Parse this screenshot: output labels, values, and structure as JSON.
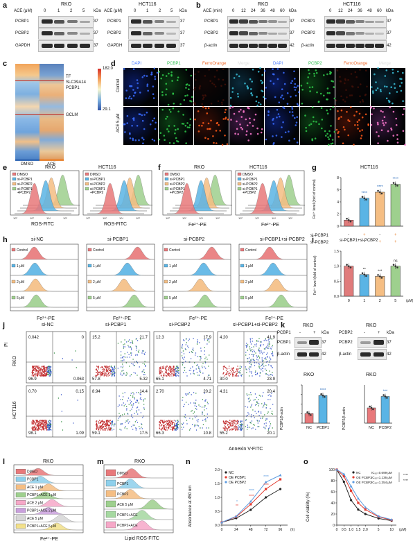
{
  "panels": {
    "a": "a",
    "b": "b",
    "c": "c",
    "d": "d",
    "e": "e",
    "f": "f",
    "g": "g",
    "h": "h",
    "i": "i",
    "j": "j",
    "k": "k",
    "l": "l",
    "m": "m",
    "n": "n",
    "o": "o"
  },
  "a": {
    "left": {
      "cell": "RKO",
      "ace_label": "ACE (μM)",
      "doses": [
        "0",
        "1",
        "2",
        "5"
      ],
      "kda": "kDa",
      "rows": [
        "PCBP1",
        "PCBP2",
        "GAPDH"
      ],
      "mw": [
        "37",
        "37",
        "37"
      ]
    },
    "right": {
      "cell": "HCT116",
      "ace_label": "ACE (μM)",
      "doses": [
        "0",
        "1",
        "2",
        "5"
      ],
      "kda": "kDa",
      "rows": [
        "PCBP1",
        "PCBP2",
        "GAPDH"
      ],
      "mw": [
        "37",
        "37",
        "37"
      ]
    }
  },
  "b": {
    "left": {
      "cell": "RKO",
      "ace_label": "ACE (min)",
      "times": [
        "0",
        "12",
        "24",
        "36",
        "48",
        "60"
      ],
      "kda": "kDa",
      "rows": [
        "PCBP1",
        "PCBP2",
        "β-actin"
      ],
      "mw": [
        "37",
        "37",
        "42"
      ]
    },
    "right": {
      "cell": "HCT116",
      "times": [
        "0",
        "12",
        "24",
        "36",
        "48",
        "60"
      ],
      "kda": "kDa",
      "rows": [
        "PCBP1",
        "PCBP2",
        "β-actin"
      ],
      "mw": [
        "37",
        "37",
        "42"
      ]
    }
  },
  "c": {
    "max": "182.0",
    "min": "29.1",
    "genes": [
      "TF",
      "SLC39A14",
      "PCBP1",
      "GCLM"
    ],
    "groups": [
      "DMSO",
      "ACE"
    ]
  },
  "d": {
    "headers": [
      "DAPI",
      "PCBP1",
      "FerroOrange",
      "Merge",
      "DAPI",
      "PCBP2",
      "FerroOrange",
      "Merge"
    ],
    "rows": [
      "Control",
      "ACE 5 μM"
    ],
    "scale": "200 μm"
  },
  "e": {
    "xlabel": "ROS-FITC",
    "left": {
      "cell": "RKO",
      "legend": [
        "DMSO",
        "si-PCBP1",
        "si-PCBP2",
        "si-PCBP1\n+PCBP2"
      ]
    },
    "right": {
      "cell": "HCT116",
      "legend": [
        "DMSO",
        "si-PCBP1",
        "si-PCBP2",
        "si-PCBP1\n+PCBP2"
      ]
    }
  },
  "f": {
    "xlabel": "Fe²⁺-PE",
    "left": {
      "cell": "RKO",
      "legend": [
        "DMSO",
        "si-PCBP1",
        "si-PCBP2",
        "si-PCBP1\n+PCBP2"
      ]
    },
    "right": {
      "cell": "HCT116",
      "legend": [
        "DMSO",
        "si-PCBP1",
        "si-PCBP2",
        "si-PCBP1\n+PCBP2"
      ]
    }
  },
  "g": {
    "title": "HCT116",
    "ylabel": "Fe²⁺ level (fold of control)",
    "yticks": [
      "0",
      "2",
      "4",
      "6",
      "8"
    ],
    "sig": [
      "****",
      "****",
      "****"
    ],
    "rows": [
      {
        "label": "si-PCBP1",
        "marks": [
          "-",
          "+",
          "-",
          "+"
        ]
      },
      {
        "label": "si-PCBP2",
        "marks": [
          "-",
          "-",
          "+",
          "+"
        ]
      }
    ]
  },
  "h": {
    "xlabel": "Fe²⁺-PE",
    "titles": [
      "si-NC",
      "si-PCBP1",
      "si-PCBP2",
      "si-PCBP1+si-PCBP2"
    ],
    "legend": [
      "Control",
      "1 μM",
      "2 μM",
      "5 μM"
    ]
  },
  "i": {
    "title": "si-PCBP1+si-PCBP2",
    "ylabel": "Fe²⁺ level (fold of control)",
    "yticks": [
      "0.0",
      "0.5",
      "1.0",
      "1.5"
    ],
    "xticks": [
      "0",
      "1",
      "2",
      "5"
    ],
    "xunit": "(μM)",
    "sig": [
      "**",
      "***",
      "ns"
    ]
  },
  "j": {
    "titles": [
      "si-NC",
      "si-PCBP1",
      "si-PCBP2",
      "si-PCBP1+si-PCBP2"
    ],
    "rows": [
      "RKO",
      "HCT116"
    ],
    "ylabel": "PI",
    "xlabel": "Annexin V-FITC",
    "quads": [
      [
        "0.042",
        "0",
        "96.9",
        "0.063"
      ],
      [
        "15.2",
        "21.7",
        "57.8",
        "5.32"
      ],
      [
        "12.3",
        "17.9",
        "65.1",
        "4.71"
      ],
      [
        "4.20",
        "41.9",
        "30.0",
        "23.9"
      ],
      [
        "0.70",
        "0.15",
        "98.1",
        "1.09"
      ],
      [
        "8.94",
        "14.4",
        "59.1",
        "17.5"
      ],
      [
        "2.70",
        "20.2",
        "66.3",
        "10.8"
      ],
      [
        "4.31",
        "20.4",
        "55.2",
        "20.1"
      ]
    ]
  },
  "k": {
    "left": {
      "cell": "RKO",
      "col": "PCBP1",
      "marks": [
        "-",
        "+"
      ],
      "kda": "kDa",
      "rows": [
        "PCBP1",
        "β-actin"
      ],
      "mw": [
        "37",
        "42"
      ],
      "ylabel": "PCBP1/β-actin",
      "xticks": [
        "NC",
        "PCBP1"
      ],
      "sig": "****"
    },
    "right": {
      "cell": "RKO",
      "col": "PCBP2",
      "marks": [
        "-",
        "+"
      ],
      "kda": "kDa",
      "rows": [
        "PCBP2",
        "β-actin"
      ],
      "mw": [
        "37",
        "42"
      ],
      "ylabel": "PCBP2/β-actin",
      "xticks": [
        "NC",
        "PCBP2"
      ],
      "sig": "***"
    }
  },
  "l": {
    "cell": "RKO",
    "xlabel": "Fe²⁺-PE",
    "legend": [
      "DMSO",
      "PCBP1",
      "ACE 1 μM",
      "PCBP1+ACE 1 μM",
      "ACE 2 μM",
      "PCBP1+ACE 2 μM",
      "ACE 5 μM",
      "PCBP1+ACE 5 μM"
    ]
  },
  "m": {
    "cell": "RKO",
    "xlabel": "Lipid ROS-FITC",
    "legend": [
      "DMSO",
      "PCBP1",
      "PCBP2",
      "ACE 5 μM",
      "PCBP1+ACE",
      "PCBP2+ACE"
    ]
  },
  "n": {
    "ylabel": "Absorbance at 450 nm",
    "xunit": "(h)",
    "xticks": [
      "0",
      "24",
      "48",
      "72",
      "96"
    ],
    "yticks": [
      "0.0",
      "0.5",
      "1.0",
      "1.5",
      "2.0"
    ],
    "legend": [
      "NC",
      "OE PCBP1",
      "OE PCBP2"
    ],
    "sig": [
      "*",
      "**",
      "****",
      "****",
      "****",
      "****"
    ]
  },
  "o": {
    "ylabel": "Cell viability (%)",
    "xunit": "(μM)",
    "xticks": [
      "0",
      "0.5",
      "1.0",
      "1.5",
      "2.0",
      "5",
      "10"
    ],
    "yticks": [
      "0",
      "20",
      "40",
      "60",
      "80",
      "100"
    ],
    "legend": [
      "NC",
      "OE PCBP1",
      "OE PCBP2"
    ],
    "ic50": [
      "IC₅₀=0.699 μM",
      "IC₅₀=1.136 μM",
      "IC₅₀=1.354 μM"
    ],
    "sig": [
      "****",
      "****"
    ]
  },
  "chart_data": [
    {
      "type": "bar",
      "panel": "g",
      "title": "HCT116",
      "categories": [
        "si-PCBP1 - / si-PCBP2 -",
        "si-PCBP1 + / si-PCBP2 -",
        "si-PCBP1 - / si-PCBP2 +",
        "si-PCBP1 + / si-PCBP2 +"
      ],
      "values": [
        1.0,
        4.6,
        5.6,
        6.9
      ],
      "ylim": [
        0,
        8
      ],
      "colors": [
        "#e07b7b",
        "#5ab4e5",
        "#f5be83",
        "#9ed08e"
      ]
    },
    {
      "type": "bar",
      "panel": "i",
      "title": "si-PCBP1+si-PCBP2",
      "categories": [
        "0",
        "1",
        "2",
        "5"
      ],
      "values": [
        1.0,
        0.72,
        0.66,
        1.0
      ],
      "ylim": [
        0,
        1.5
      ],
      "colors": [
        "#e07b7b",
        "#5ab4e5",
        "#f5be83",
        "#9ed08e"
      ]
    },
    {
      "type": "bar",
      "panel": "k-left",
      "categories": [
        "NC",
        "PCBP1"
      ],
      "values": [
        1.0,
        2.9
      ],
      "ylim": [
        0,
        4
      ]
    },
    {
      "type": "bar",
      "panel": "k-right",
      "categories": [
        "NC",
        "PCBP2"
      ],
      "values": [
        1.0,
        1.75
      ],
      "ylim": [
        0,
        2.5
      ]
    },
    {
      "type": "line",
      "panel": "n",
      "x": [
        0,
        24,
        48,
        72,
        96
      ],
      "xlim": [
        0,
        108
      ],
      "ylim": [
        0,
        2.0
      ],
      "series": [
        {
          "name": "NC",
          "values": [
            0.1,
            0.25,
            0.55,
            1.0,
            1.3
          ],
          "color": "#222222"
        },
        {
          "name": "OE PCBP1",
          "values": [
            0.1,
            0.3,
            0.75,
            1.3,
            1.65
          ],
          "color": "#e23a2e"
        },
        {
          "name": "OE PCBP2",
          "values": [
            0.1,
            0.32,
            0.85,
            1.55,
            1.8
          ],
          "color": "#5d9be0"
        }
      ]
    },
    {
      "type": "line",
      "panel": "o",
      "x": [
        0,
        0.5,
        1.0,
        1.5,
        2.0,
        5,
        10
      ],
      "ylim": [
        0,
        100
      ],
      "series": [
        {
          "name": "NC",
          "values": [
            100,
            78,
            45,
            28,
            20,
            12,
            8
          ],
          "color": "#222222"
        },
        {
          "name": "OE PCBP1",
          "values": [
            100,
            88,
            62,
            40,
            28,
            15,
            9
          ],
          "color": "#e23a2e"
        },
        {
          "name": "OE PCBP2",
          "values": [
            100,
            92,
            70,
            48,
            32,
            16,
            10
          ],
          "color": "#5d9be0"
        }
      ]
    }
  ]
}
